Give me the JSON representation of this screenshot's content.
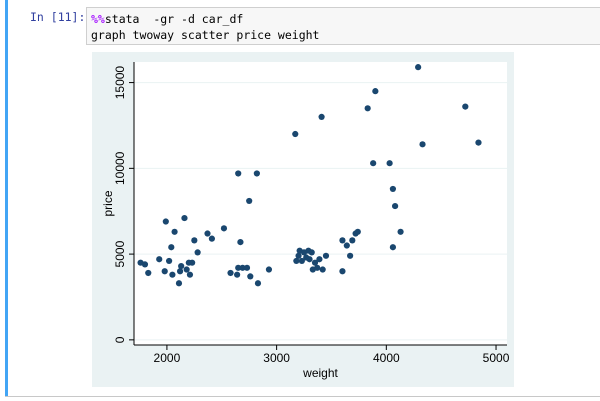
{
  "cell": {
    "prompt": "In [11]:",
    "code_lines": [
      {
        "magic": "%%",
        "rest": "stata  -gr -d car_df"
      },
      {
        "magic": "",
        "rest": "graph twoway scatter price weight"
      }
    ]
  },
  "colors": {
    "cell_bar": "#42a5f5",
    "plot_outer_bg": "#eaf2f3",
    "plot_inner_bg": "#ffffff",
    "marker": "#1a476f",
    "grid": "#eaf2f3"
  },
  "chart_data": {
    "type": "scatter",
    "title": "",
    "xlabel": "weight",
    "ylabel": "price",
    "xlim": [
      1700,
      5100
    ],
    "ylim": [
      -300,
      16200
    ],
    "xticks": [
      2000,
      3000,
      4000,
      5000
    ],
    "yticks": [
      0,
      5000,
      10000,
      15000
    ],
    "grid": true,
    "legend": "none",
    "points": [
      [
        1760,
        4500
      ],
      [
        1800,
        4400
      ],
      [
        1830,
        3900
      ],
      [
        1930,
        4700
      ],
      [
        1980,
        4000
      ],
      [
        1990,
        6900
      ],
      [
        2020,
        4600
      ],
      [
        2040,
        5400
      ],
      [
        2050,
        3800
      ],
      [
        2070,
        6300
      ],
      [
        2110,
        3300
      ],
      [
        2120,
        4000
      ],
      [
        2130,
        4300
      ],
      [
        2160,
        7100
      ],
      [
        2180,
        4100
      ],
      [
        2200,
        4500
      ],
      [
        2210,
        3800
      ],
      [
        2230,
        4500
      ],
      [
        2250,
        5800
      ],
      [
        2280,
        5100
      ],
      [
        2370,
        6200
      ],
      [
        2410,
        5900
      ],
      [
        2520,
        6500
      ],
      [
        2580,
        3900
      ],
      [
        2640,
        3800
      ],
      [
        2650,
        4200
      ],
      [
        2650,
        9700
      ],
      [
        2670,
        5700
      ],
      [
        2690,
        4200
      ],
      [
        2730,
        4200
      ],
      [
        2750,
        8100
      ],
      [
        2760,
        3700
      ],
      [
        2820,
        9700
      ],
      [
        2830,
        3300
      ],
      [
        2930,
        4100
      ],
      [
        3170,
        12000
      ],
      [
        3180,
        4600
      ],
      [
        3200,
        4900
      ],
      [
        3210,
        5200
      ],
      [
        3230,
        4600
      ],
      [
        3250,
        5100
      ],
      [
        3270,
        4800
      ],
      [
        3290,
        5200
      ],
      [
        3300,
        4700
      ],
      [
        3320,
        5100
      ],
      [
        3330,
        4100
      ],
      [
        3350,
        4500
      ],
      [
        3370,
        4200
      ],
      [
        3390,
        4700
      ],
      [
        3410,
        13000
      ],
      [
        3420,
        4100
      ],
      [
        3450,
        4900
      ],
      [
        3600,
        5800
      ],
      [
        3600,
        4000
      ],
      [
        3640,
        5500
      ],
      [
        3670,
        4900
      ],
      [
        3690,
        5800
      ],
      [
        3720,
        6200
      ],
      [
        3740,
        6300
      ],
      [
        3830,
        13500
      ],
      [
        3880,
        10300
      ],
      [
        3900,
        14500
      ],
      [
        4030,
        10300
      ],
      [
        4060,
        5400
      ],
      [
        4060,
        8800
      ],
      [
        4080,
        7800
      ],
      [
        4130,
        6300
      ],
      [
        4290,
        15900
      ],
      [
        4330,
        11400
      ],
      [
        4720,
        13600
      ],
      [
        4840,
        11500
      ]
    ]
  }
}
